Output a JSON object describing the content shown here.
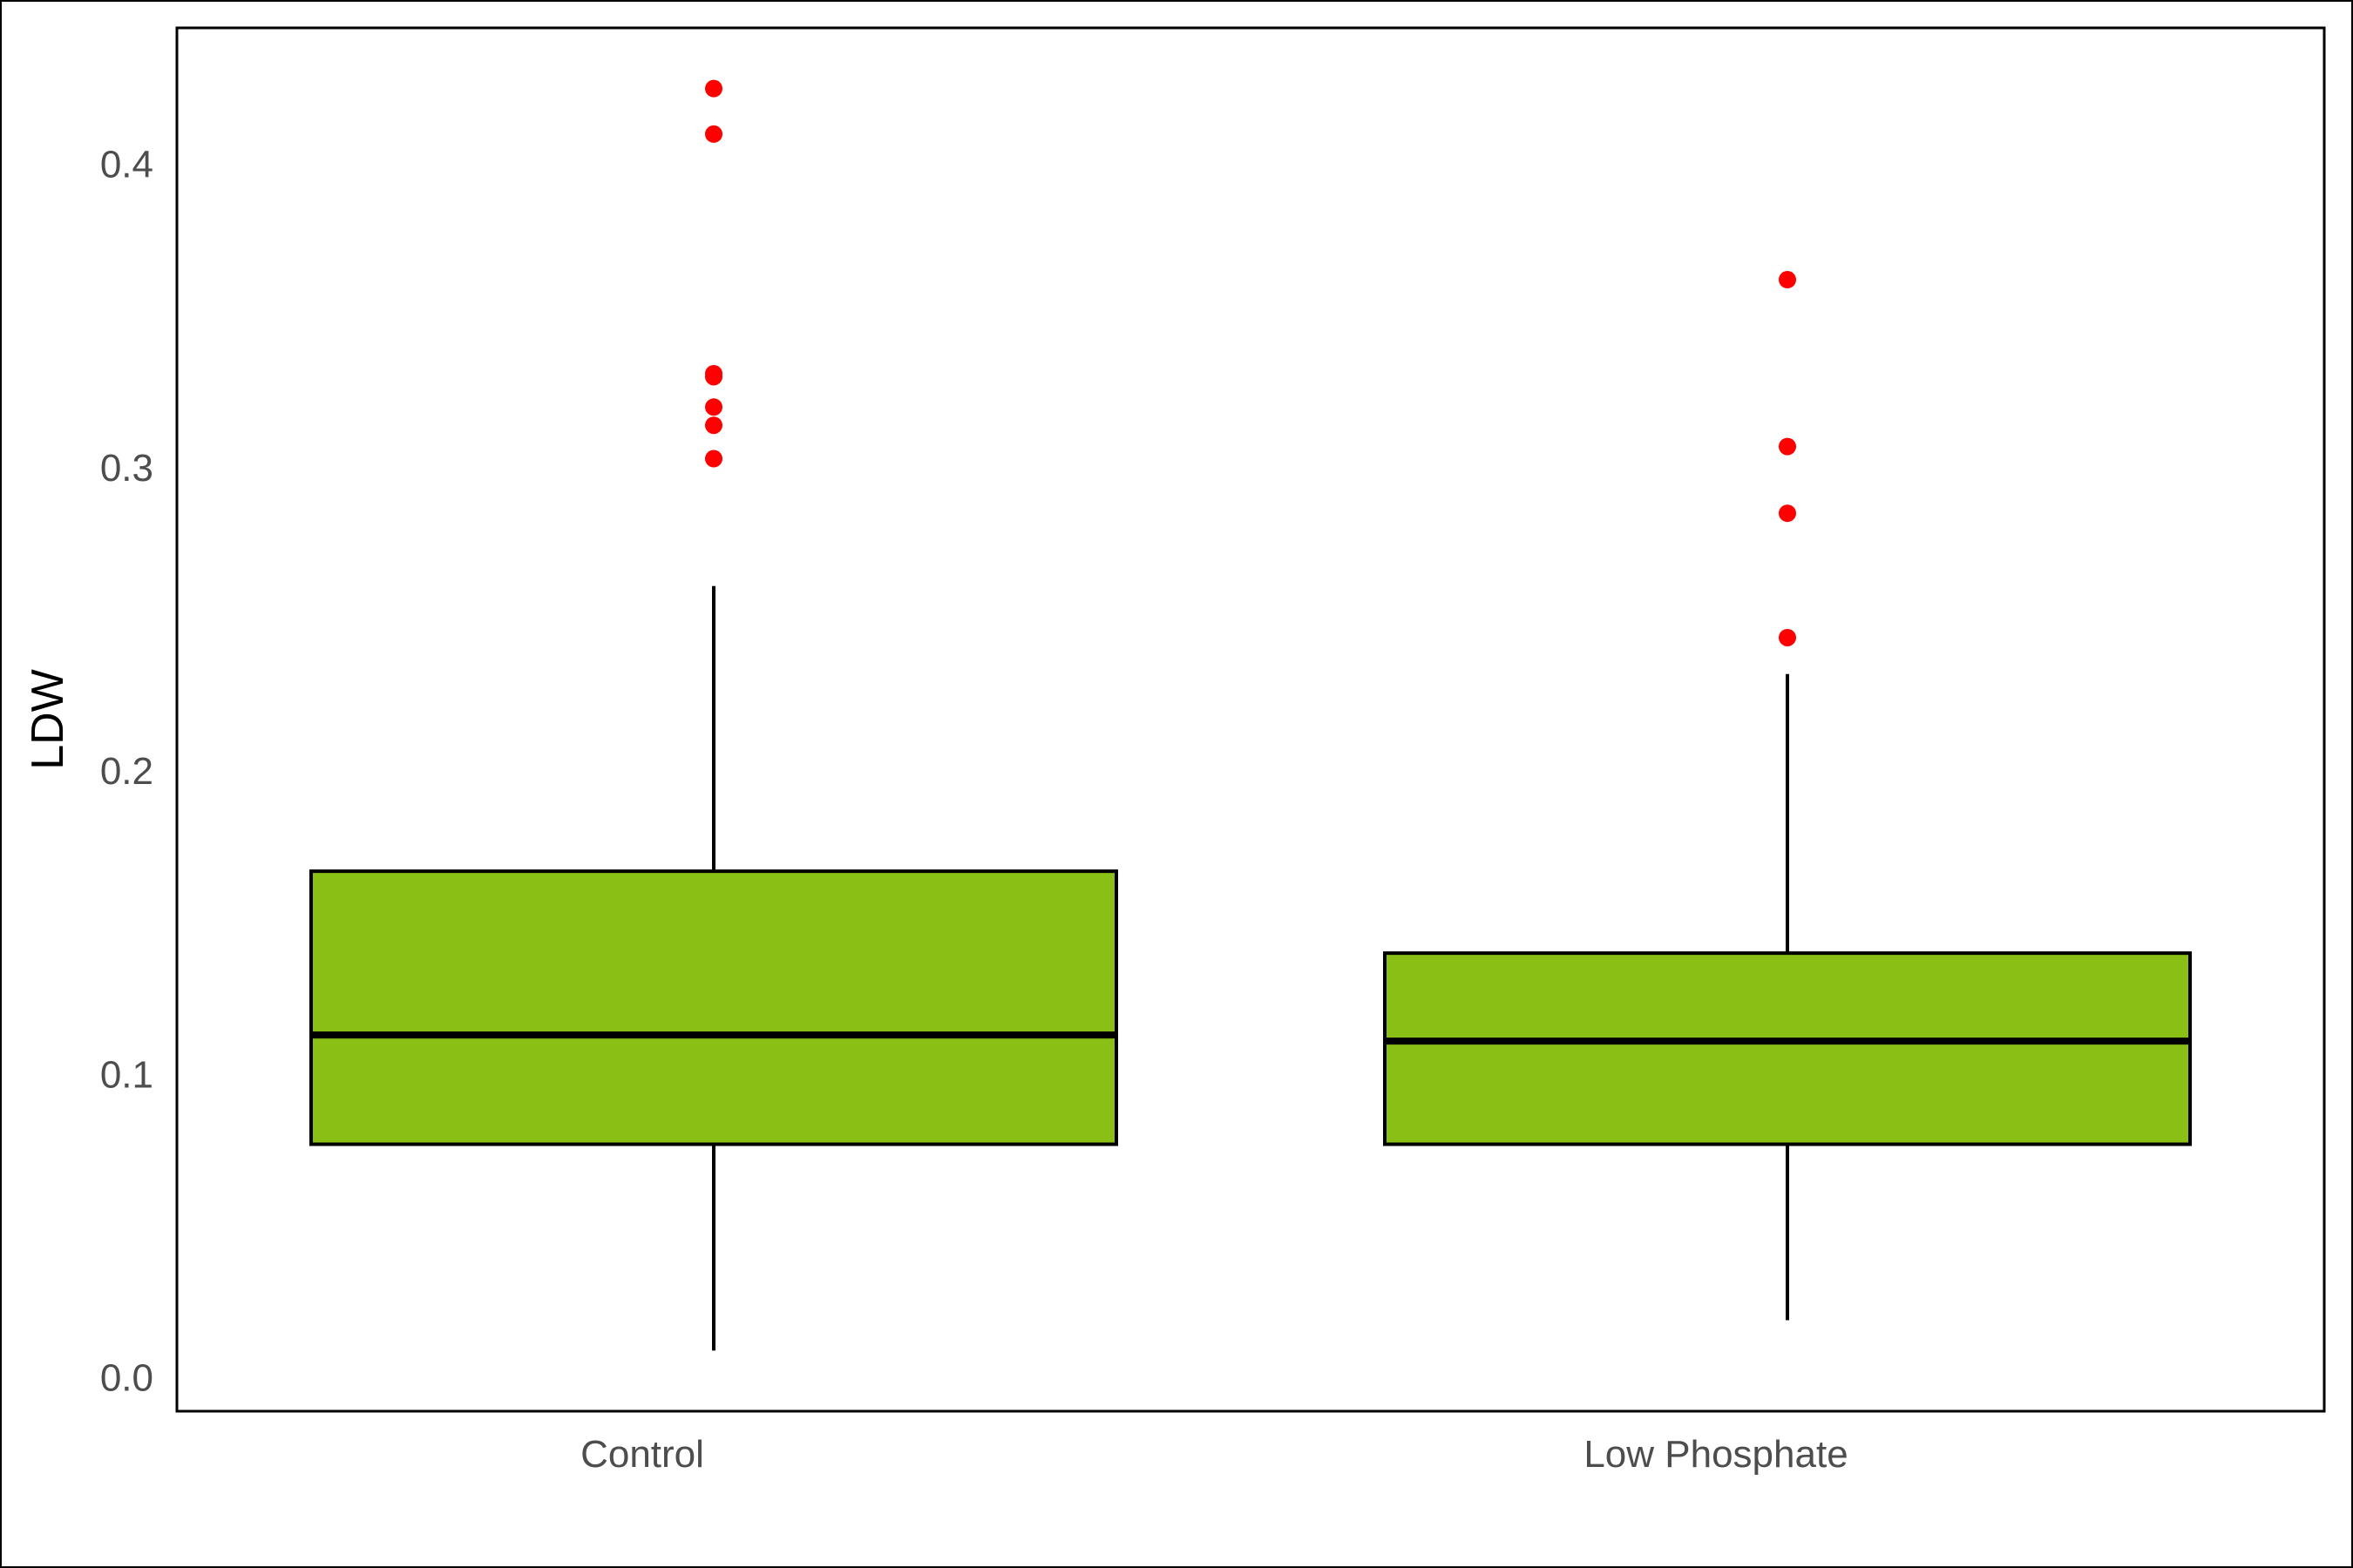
{
  "chart_data": {
    "type": "box",
    "title": "",
    "xlabel": "",
    "ylabel": "LDW",
    "ylim": [
      -0.011,
      0.445
    ],
    "yticks": [
      0.0,
      0.1,
      0.2,
      0.3,
      0.4
    ],
    "ytick_labels": [
      "0.0",
      "0.1",
      "0.2",
      "0.3",
      "0.4"
    ],
    "grid": false,
    "categories": [
      "Control",
      "Low Phosphate"
    ],
    "boxes": [
      {
        "category": "Control",
        "whisker_low": 0.009,
        "q1": 0.077,
        "median": 0.113,
        "q3": 0.167,
        "whisker_high": 0.261,
        "outliers": [
          0.303,
          0.314,
          0.32,
          0.33,
          0.331,
          0.41,
          0.425
        ]
      },
      {
        "category": "Low Phosphate",
        "whisker_low": 0.019,
        "q1": 0.077,
        "median": 0.111,
        "q3": 0.14,
        "whisker_high": 0.232,
        "outliers": [
          0.244,
          0.285,
          0.307,
          0.362
        ]
      }
    ],
    "colors": {
      "box_fill": "#8abf16",
      "box_stroke": "#000000",
      "outlier": "#ff0000"
    }
  }
}
